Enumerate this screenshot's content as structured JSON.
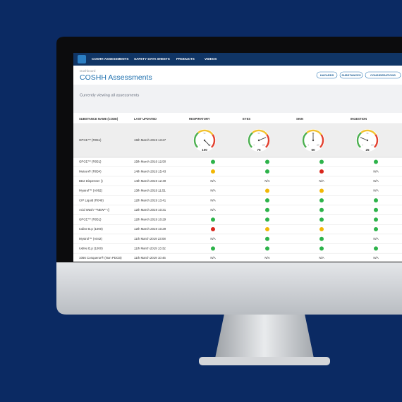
{
  "nav": [
    "COSHH ASSESSMENTS",
    "SAFETY DATA SHEETS",
    "PRODUCTS",
    "VIDEOS"
  ],
  "breadcrumb": "Dashboard",
  "title": "COSHH Assessments",
  "buttons": [
    "HAZARDS",
    "SUBSTANCES",
    "CONSIDERATIONS"
  ],
  "notice": "Currently viewing all assessments",
  "table": {
    "headers": [
      "SUBSTANCE NAME (CODE)",
      "LAST UPDATED",
      "RESPIRATORY",
      "EYES",
      "SKIN",
      "INGESTION"
    ],
    "gauge_row": {
      "name": "GPCE™ (R051)",
      "updated": "15th March 2019 13:27",
      "gauges": [
        100,
        75,
        50,
        25
      ],
      "gauge_ticks": [
        0,
        50,
        100
      ]
    },
    "rows": [
      [
        "GPCE™ (R051)",
        "15th March 2019 12:50",
        "#2db34a",
        "#2db34a",
        "#2db34a",
        "#2db34a"
      ],
      [
        "Metron® (R054)",
        "14th March 2019 15:43",
        "#f2b705",
        "#2db34a",
        "#d9261c",
        "N/A"
      ],
      [
        "BD2 Dispenser ()",
        "14th March 2019 12:49",
        "N/A",
        "N/A",
        "N/A",
        "N/A"
      ],
      [
        "Mystrol™ (A062)",
        "13th March 2019 11:51",
        "N/A",
        "#f2b705",
        "#f2b705",
        "N/A"
      ],
      [
        "CIP Liquid (R049)",
        "12th March 2019 13:41",
        "N/A",
        "#2db34a",
        "#2db34a",
        "#2db34a"
      ],
      [
        "Acid Wash **NEW** ()",
        "12th March 2019 10:31",
        "N/A",
        "#2db34a",
        "#2db34a",
        "#2db34a"
      ],
      [
        "GPCE™ (R051)",
        "12th March 2019 10:29",
        "#2db34a",
        "#2db34a",
        "#2db34a",
        "#2db34a"
      ],
      [
        "Iodine B.p (1000)",
        "12th March 2019 10:29",
        "#d9261c",
        "#f2b705",
        "#f2b705",
        "#2db34a"
      ],
      [
        "Mystrol™ (A042)",
        "11th March 2019 23:08",
        "N/A",
        "#2db34a",
        "#2db34a",
        "N/A"
      ],
      [
        "Iodine B.p (1000)",
        "11th March 2019 13:32",
        "#2db34a",
        "#2db34a",
        "#2db34a",
        "#2db34a"
      ],
      [
        "1066 Conqueror® (Non PDCB)",
        "11th March 2019 10:46",
        "N/A",
        "N/A",
        "N/A",
        "N/A"
      ]
    ]
  }
}
